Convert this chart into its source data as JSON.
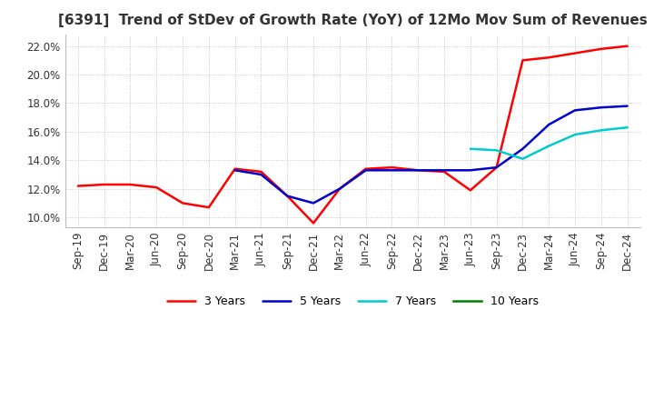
{
  "title": "[6391]  Trend of StDev of Growth Rate (YoY) of 12Mo Mov Sum of Revenues",
  "background_color": "#ffffff",
  "grid_color": "#bbbbbb",
  "series": [
    {
      "label": "3 Years",
      "color": "#ff0000",
      "linewidth": 1.8,
      "x": [
        0,
        1,
        2,
        3,
        4,
        5,
        6,
        7,
        8,
        9,
        10,
        11,
        12,
        13,
        14,
        15,
        16,
        17,
        18,
        19,
        20,
        21
      ],
      "y": [
        0.122,
        0.123,
        0.123,
        0.121,
        0.11,
        0.107,
        0.134,
        0.132,
        0.115,
        0.096,
        0.12,
        0.134,
        0.135,
        0.133,
        0.132,
        0.119,
        0.135,
        0.21,
        0.212,
        0.215,
        0.218,
        0.22
      ]
    },
    {
      "label": "5 Years",
      "color": "#0000cc",
      "linewidth": 1.8,
      "x": [
        6,
        7,
        8,
        9,
        10,
        11,
        12,
        13,
        14,
        15,
        16,
        17,
        18,
        19,
        20,
        21
      ],
      "y": [
        0.133,
        0.13,
        0.115,
        0.11,
        0.12,
        0.133,
        0.133,
        0.133,
        0.133,
        0.133,
        0.135,
        0.148,
        0.165,
        0.175,
        0.177,
        0.178
      ]
    },
    {
      "label": "7 Years",
      "color": "#00cccc",
      "linewidth": 1.8,
      "x": [
        15,
        16,
        17,
        18,
        19,
        20,
        21
      ],
      "y": [
        0.148,
        0.147,
        0.141,
        0.15,
        0.158,
        0.161,
        0.163
      ]
    },
    {
      "label": "10 Years",
      "color": "#008000",
      "linewidth": 1.8,
      "x": [],
      "y": []
    }
  ],
  "xtick_labels": [
    "Sep-19",
    "Dec-19",
    "Mar-20",
    "Jun-20",
    "Sep-20",
    "Dec-20",
    "Mar-21",
    "Jun-21",
    "Sep-21",
    "Dec-21",
    "Mar-22",
    "Jun-22",
    "Sep-22",
    "Dec-22",
    "Mar-23",
    "Jun-23",
    "Sep-23",
    "Dec-23",
    "Mar-24",
    "Jun-24",
    "Sep-24",
    "Dec-24"
  ],
  "ylim": [
    0.093,
    0.228
  ],
  "yticks": [
    0.1,
    0.12,
    0.14,
    0.16,
    0.18,
    0.2,
    0.22
  ]
}
